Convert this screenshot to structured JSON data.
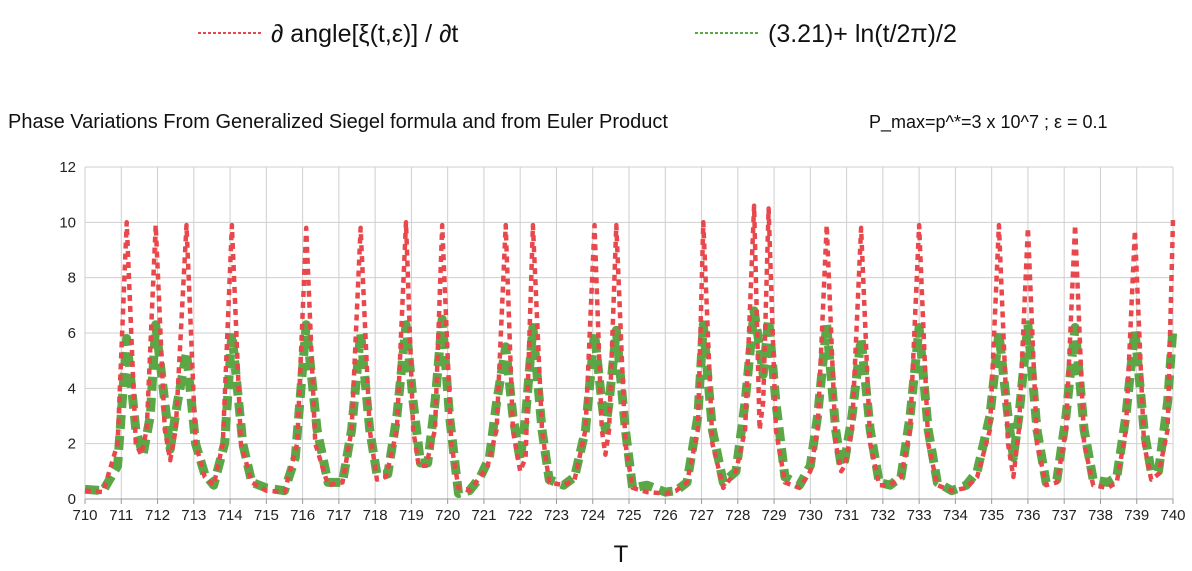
{
  "chart_data": {
    "type": "line",
    "title": "Phase Variations From Generalized Siegel formula and from Euler Product",
    "subtitle": "P_max=p^*=3 x 10^7 ; ε = 0.1",
    "xlabel": "T",
    "ylabel": "",
    "xlim": [
      710,
      740
    ],
    "ylim": [
      0,
      12
    ],
    "x_ticks": [
      710,
      711,
      712,
      713,
      714,
      715,
      716,
      717,
      718,
      719,
      720,
      721,
      722,
      723,
      724,
      725,
      726,
      727,
      728,
      729,
      730,
      731,
      732,
      733,
      734,
      735,
      736,
      737,
      738,
      739,
      740
    ],
    "y_ticks": [
      0,
      2,
      4,
      6,
      8,
      10,
      12
    ],
    "grid": true,
    "legend_position": "top",
    "series": [
      {
        "name": "∂ angle[ξ(t,ε)] / ∂t",
        "color": "#e8474b",
        "style": "dotted",
        "points": [
          [
            710,
            0.3
          ],
          [
            710.5,
            0.25
          ],
          [
            710.9,
            2.0
          ],
          [
            711.15,
            10.0
          ],
          [
            711.4,
            2.0
          ],
          [
            711.55,
            1.6
          ],
          [
            711.7,
            2.5
          ],
          [
            711.95,
            9.9
          ],
          [
            712.2,
            2.5
          ],
          [
            712.35,
            1.4
          ],
          [
            712.5,
            2.5
          ],
          [
            712.8,
            9.9
          ],
          [
            713.05,
            2.0
          ],
          [
            713.3,
            0.8
          ],
          [
            713.55,
            0.5
          ],
          [
            713.8,
            2.0
          ],
          [
            714.05,
            9.9
          ],
          [
            714.3,
            2.0
          ],
          [
            714.6,
            0.6
          ],
          [
            715.0,
            0.3
          ],
          [
            715.5,
            0.25
          ],
          [
            715.85,
            2.0
          ],
          [
            716.1,
            9.8
          ],
          [
            716.35,
            2.0
          ],
          [
            716.7,
            0.5
          ],
          [
            717.1,
            0.6
          ],
          [
            717.35,
            2.5
          ],
          [
            717.6,
            9.8
          ],
          [
            717.85,
            2.5
          ],
          [
            718.05,
            0.7
          ],
          [
            718.3,
            0.8
          ],
          [
            718.6,
            2.5
          ],
          [
            718.85,
            10.0
          ],
          [
            719.05,
            2.5
          ],
          [
            719.2,
            1.2
          ],
          [
            719.4,
            1.2
          ],
          [
            719.65,
            2.5
          ],
          [
            719.85,
            9.9
          ],
          [
            720.1,
            2.0
          ],
          [
            720.3,
            0.4
          ],
          [
            720.6,
            0.3
          ],
          [
            720.9,
            0.8
          ],
          [
            721.1,
            1.2
          ],
          [
            721.35,
            2.5
          ],
          [
            721.6,
            9.9
          ],
          [
            721.8,
            2.5
          ],
          [
            722.0,
            1.0
          ],
          [
            722.15,
            1.5
          ],
          [
            722.35,
            9.9
          ],
          [
            722.6,
            2.5
          ],
          [
            722.8,
            0.6
          ],
          [
            723.2,
            0.5
          ],
          [
            723.5,
            0.7
          ],
          [
            723.8,
            2.5
          ],
          [
            724.05,
            9.9
          ],
          [
            724.25,
            2.5
          ],
          [
            724.35,
            1.6
          ],
          [
            724.45,
            2.5
          ],
          [
            724.65,
            9.9
          ],
          [
            724.9,
            2.0
          ],
          [
            725.1,
            0.4
          ],
          [
            725.5,
            0.25
          ],
          [
            726.0,
            0.2
          ],
          [
            726.3,
            0.3
          ],
          [
            726.6,
            0.6
          ],
          [
            726.9,
            2.5
          ],
          [
            727.05,
            10.0
          ],
          [
            727.3,
            2.0
          ],
          [
            727.6,
            0.4
          ],
          [
            727.95,
            1.0
          ],
          [
            728.2,
            2.5
          ],
          [
            728.45,
            10.6
          ],
          [
            728.6,
            2.5
          ],
          [
            728.7,
            3.5
          ],
          [
            728.85,
            10.5
          ],
          [
            729.05,
            2.5
          ],
          [
            729.3,
            0.6
          ],
          [
            729.7,
            0.4
          ],
          [
            730.0,
            1.0
          ],
          [
            730.2,
            2.5
          ],
          [
            730.45,
            9.9
          ],
          [
            730.7,
            2.0
          ],
          [
            730.85,
            1.0
          ],
          [
            730.95,
            1.2
          ],
          [
            731.15,
            2.5
          ],
          [
            731.4,
            9.8
          ],
          [
            731.65,
            2.0
          ],
          [
            731.9,
            0.5
          ],
          [
            732.2,
            0.5
          ],
          [
            732.5,
            0.8
          ],
          [
            732.75,
            2.5
          ],
          [
            733.0,
            9.9
          ],
          [
            733.25,
            2.0
          ],
          [
            733.5,
            0.5
          ],
          [
            733.9,
            0.3
          ],
          [
            734.3,
            0.4
          ],
          [
            734.6,
            0.8
          ],
          [
            734.95,
            2.5
          ],
          [
            735.2,
            9.9
          ],
          [
            735.45,
            2.0
          ],
          [
            735.6,
            0.8
          ],
          [
            735.75,
            2.5
          ],
          [
            736.0,
            9.8
          ],
          [
            736.25,
            2.0
          ],
          [
            736.5,
            0.5
          ],
          [
            736.8,
            0.6
          ],
          [
            737.05,
            2.5
          ],
          [
            737.3,
            9.9
          ],
          [
            737.55,
            2.0
          ],
          [
            737.8,
            0.5
          ],
          [
            738.2,
            0.4
          ],
          [
            738.45,
            0.6
          ],
          [
            738.7,
            2.5
          ],
          [
            738.95,
            9.7
          ],
          [
            739.2,
            2.0
          ],
          [
            739.4,
            0.7
          ],
          [
            739.6,
            0.9
          ],
          [
            739.85,
            2.5
          ],
          [
            740.0,
            10.1
          ]
        ]
      },
      {
        "name": "(3.21)+ ln(t/2π)/2",
        "color": "#5aa845",
        "style": "dashed",
        "points": [
          [
            710,
            0.35
          ],
          [
            710.5,
            0.3
          ],
          [
            710.9,
            1.2
          ],
          [
            711.15,
            5.8
          ],
          [
            711.4,
            2.5
          ],
          [
            711.6,
            1.6
          ],
          [
            711.8,
            3.0
          ],
          [
            711.95,
            6.3
          ],
          [
            712.2,
            3.5
          ],
          [
            712.35,
            1.8
          ],
          [
            712.55,
            3.5
          ],
          [
            712.8,
            5.3
          ],
          [
            713.05,
            2.0
          ],
          [
            713.3,
            0.9
          ],
          [
            713.55,
            0.5
          ],
          [
            713.85,
            2.0
          ],
          [
            714.05,
            6.0
          ],
          [
            714.35,
            2.0
          ],
          [
            714.6,
            0.6
          ],
          [
            715.0,
            0.4
          ],
          [
            715.5,
            0.3
          ],
          [
            715.8,
            1.5
          ],
          [
            716.1,
            6.3
          ],
          [
            716.4,
            2.5
          ],
          [
            716.7,
            0.6
          ],
          [
            717.1,
            0.6
          ],
          [
            717.35,
            2.5
          ],
          [
            717.6,
            6.0
          ],
          [
            717.85,
            2.5
          ],
          [
            718.05,
            0.9
          ],
          [
            718.35,
            0.9
          ],
          [
            718.6,
            3.0
          ],
          [
            718.85,
            6.3
          ],
          [
            719.05,
            3.5
          ],
          [
            719.25,
            1.3
          ],
          [
            719.45,
            1.3
          ],
          [
            719.65,
            3.5
          ],
          [
            719.85,
            6.5
          ],
          [
            720.05,
            3.0
          ],
          [
            720.3,
            0.2
          ],
          [
            720.6,
            0.3
          ],
          [
            720.9,
            0.8
          ],
          [
            721.15,
            1.5
          ],
          [
            721.35,
            3.5
          ],
          [
            721.6,
            5.5
          ],
          [
            721.8,
            3.0
          ],
          [
            722.0,
            1.4
          ],
          [
            722.15,
            3.0
          ],
          [
            722.35,
            6.2
          ],
          [
            722.6,
            2.5
          ],
          [
            722.8,
            0.7
          ],
          [
            723.2,
            0.5
          ],
          [
            723.5,
            0.8
          ],
          [
            723.8,
            2.5
          ],
          [
            724.05,
            6.0
          ],
          [
            724.25,
            3.5
          ],
          [
            724.35,
            2.5
          ],
          [
            724.45,
            3.5
          ],
          [
            724.65,
            6.1
          ],
          [
            724.9,
            2.5
          ],
          [
            725.1,
            0.4
          ],
          [
            725.5,
            0.5
          ],
          [
            726.0,
            0.25
          ],
          [
            726.3,
            0.3
          ],
          [
            726.6,
            0.6
          ],
          [
            726.9,
            3.0
          ],
          [
            727.05,
            6.3
          ],
          [
            727.3,
            2.5
          ],
          [
            727.6,
            0.6
          ],
          [
            727.95,
            1.0
          ],
          [
            728.2,
            3.5
          ],
          [
            728.45,
            6.8
          ],
          [
            728.6,
            5.5
          ],
          [
            728.7,
            4.5
          ],
          [
            728.85,
            6.5
          ],
          [
            729.05,
            3.5
          ],
          [
            729.3,
            0.8
          ],
          [
            729.7,
            0.5
          ],
          [
            730.0,
            1.2
          ],
          [
            730.2,
            3.0
          ],
          [
            730.45,
            6.3
          ],
          [
            730.7,
            2.5
          ],
          [
            730.85,
            1.2
          ],
          [
            730.95,
            1.4
          ],
          [
            731.15,
            3.0
          ],
          [
            731.4,
            5.8
          ],
          [
            731.65,
            2.5
          ],
          [
            731.9,
            0.6
          ],
          [
            732.2,
            0.5
          ],
          [
            732.5,
            0.8
          ],
          [
            732.75,
            3.0
          ],
          [
            733.0,
            6.2
          ],
          [
            733.25,
            2.5
          ],
          [
            733.5,
            0.6
          ],
          [
            733.9,
            0.3
          ],
          [
            734.3,
            0.5
          ],
          [
            734.6,
            1.0
          ],
          [
            734.95,
            3.0
          ],
          [
            735.2,
            6.0
          ],
          [
            735.45,
            3.0
          ],
          [
            735.6,
            1.5
          ],
          [
            735.75,
            3.0
          ],
          [
            736.0,
            6.3
          ],
          [
            736.25,
            2.5
          ],
          [
            736.5,
            0.6
          ],
          [
            736.8,
            0.7
          ],
          [
            737.05,
            3.0
          ],
          [
            737.3,
            6.2
          ],
          [
            737.55,
            2.5
          ],
          [
            737.8,
            0.7
          ],
          [
            738.2,
            0.6
          ],
          [
            738.45,
            0.8
          ],
          [
            738.7,
            3.0
          ],
          [
            738.95,
            6.1
          ],
          [
            739.2,
            2.5
          ],
          [
            739.4,
            1.0
          ],
          [
            739.6,
            1.0
          ],
          [
            739.85,
            3.5
          ],
          [
            740.0,
            6.2
          ]
        ]
      }
    ]
  }
}
